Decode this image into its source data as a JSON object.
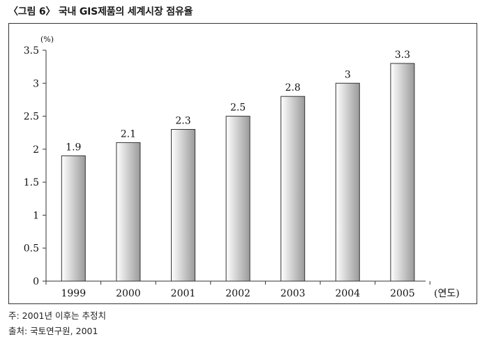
{
  "title": "〈그림 6〉 국내 GIS제품의 세계시장 점유율",
  "notes": {
    "note": "주: 2001년 이후는 추정치",
    "source": "출처: 국토연구원, 2001"
  },
  "chart_data": {
    "type": "bar",
    "categories": [
      "1999",
      "2000",
      "2001",
      "2002",
      "2003",
      "2004",
      "2005"
    ],
    "values": [
      1.9,
      2.1,
      2.3,
      2.5,
      2.8,
      3,
      3.3
    ],
    "value_labels": [
      "1.9",
      "2.1",
      "2.3",
      "2.5",
      "2.8",
      "3",
      "3.3"
    ],
    "title": "",
    "ylabel": "(%)",
    "xlabel": "(연도)",
    "ylim": [
      0,
      3.5
    ],
    "yticks": [
      0,
      0.5,
      1,
      1.5,
      2,
      2.5,
      3,
      3.5
    ],
    "ytick_labels": [
      "0",
      "0.5",
      "1",
      "1.5",
      "2",
      "2.5",
      "3",
      "3.5"
    ],
    "grid": false,
    "colors": {
      "bar_light": "#ffffff",
      "bar_dark": "#9a9a9a",
      "bar_edge": "#333333",
      "axis": "#333333"
    }
  }
}
